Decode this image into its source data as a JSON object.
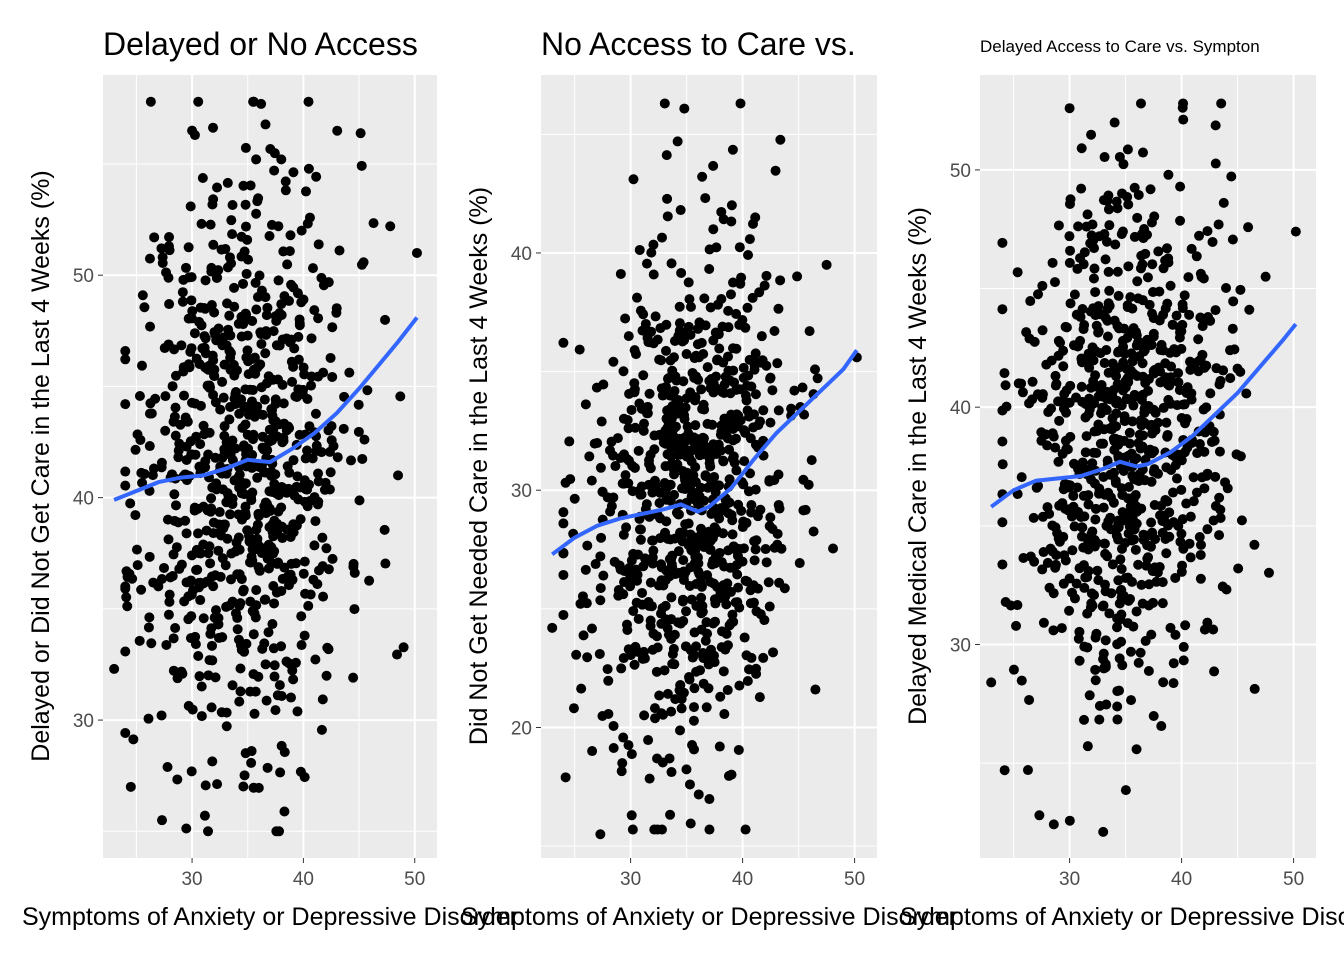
{
  "chart_data": [
    {
      "type": "scatter",
      "title": "Delayed or No Access",
      "xlabel": "Symptoms of Anxiety or Depressive Disorder",
      "ylabel": "Delayed or Did Not Get Care in the Last 4 Weeks (%)",
      "xlim": [
        22,
        52
      ],
      "ylim": [
        23.8,
        59
      ],
      "xticks": [
        30,
        40,
        50
      ],
      "yticks": [
        30,
        40,
        50
      ],
      "grid": true,
      "seed": 11,
      "n_points": 850,
      "x_center": 34.5,
      "x_spread": 4.6,
      "y_center": 42,
      "y_spread": 6.6,
      "trend_slope": 0.12,
      "outliers": [
        [
          23,
          32.3
        ],
        [
          24.5,
          27
        ],
        [
          27.3,
          25.5
        ],
        [
          30,
          56.5
        ],
        [
          36.2,
          57.7
        ],
        [
          50.2,
          51
        ],
        [
          47.8,
          52.2
        ],
        [
          48.5,
          41
        ]
      ],
      "smooth_series": {
        "name": "",
        "x": [
          23,
          25,
          27,
          29,
          31,
          33,
          35,
          37,
          39,
          41,
          43,
          45,
          47,
          48.5,
          50.2
        ],
        "y": [
          39.9,
          40.3,
          40.7,
          40.9,
          41.0,
          41.3,
          41.7,
          41.6,
          42.2,
          42.9,
          43.8,
          44.9,
          46.1,
          47.0,
          48.1
        ]
      }
    },
    {
      "type": "scatter",
      "title": "No Access to Care vs.",
      "xlabel": "Symptoms of Anxiety or Depressive Disorder",
      "ylabel": "Did Not Get Needed Care in the Last 4 Weeks (%)",
      "xlim": [
        22,
        52
      ],
      "ylim": [
        14.5,
        47.5
      ],
      "xticks": [
        30,
        40,
        50
      ],
      "yticks": [
        20,
        30,
        40
      ],
      "grid": true,
      "seed": 23,
      "n_points": 850,
      "x_center": 35,
      "x_spread": 4.5,
      "y_center": 29.5,
      "y_spread": 5.4,
      "trend_slope": 0.15,
      "outliers": [
        [
          23,
          24.2
        ],
        [
          24.2,
          17.9
        ],
        [
          27.3,
          15.5
        ],
        [
          30.1,
          16.3
        ],
        [
          34.2,
          44.7
        ],
        [
          50.2,
          35.6
        ],
        [
          46.5,
          21.6
        ],
        [
          47.5,
          39.5
        ]
      ],
      "smooth_series": {
        "name": "",
        "x": [
          23,
          25,
          27,
          29,
          31,
          33,
          34.5,
          36,
          37,
          39,
          41,
          43,
          45,
          47,
          49,
          50.2
        ],
        "y": [
          27.3,
          28.0,
          28.5,
          28.8,
          29.0,
          29.2,
          29.4,
          29.1,
          29.3,
          30.1,
          31.3,
          32.4,
          33.3,
          34.2,
          35.1,
          35.9
        ]
      }
    },
    {
      "type": "scatter",
      "title": "Delayed Access to Care vs. Sympton",
      "xlabel": "Symptoms of Anxiety or Depressive Disorder",
      "ylabel": "Delayed Medical Care in the Last 4 Weeks (%)",
      "xlim": [
        22,
        52
      ],
      "ylim": [
        21.0,
        54.0
      ],
      "xticks": [
        30,
        40,
        50
      ],
      "yticks": [
        30,
        40,
        50
      ],
      "grid": true,
      "seed": 37,
      "n_points": 850,
      "x_center": 35,
      "x_spread": 4.5,
      "y_center": 39,
      "y_spread": 5.4,
      "trend_slope": 0.12,
      "outliers": [
        [
          23,
          28.4
        ],
        [
          24.2,
          24.7
        ],
        [
          27.3,
          22.8
        ],
        [
          30,
          52.6
        ],
        [
          33,
          22.1
        ],
        [
          50.2,
          47.4
        ],
        [
          46.5,
          34.2
        ],
        [
          47.5,
          45.5
        ]
      ],
      "smooth_series": {
        "name": "",
        "x": [
          23,
          25,
          27,
          29,
          31,
          33,
          34.5,
          36,
          37,
          39,
          41,
          43,
          45,
          47,
          49,
          50.2
        ],
        "y": [
          35.8,
          36.5,
          36.9,
          37.0,
          37.1,
          37.4,
          37.7,
          37.5,
          37.6,
          38.1,
          38.8,
          39.7,
          40.6,
          41.7,
          42.8,
          43.5
        ]
      }
    }
  ]
}
